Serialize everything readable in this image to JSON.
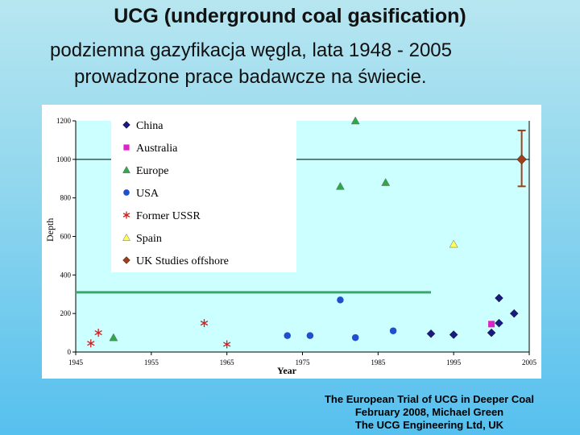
{
  "slide": {
    "title": "UCG (underground coal gasification)",
    "subtitle_line1": "podziemna gazyfikacja węgla, lata 1948 - 2005",
    "subtitle_line2": "prowadzone prace badawcze na świecie.",
    "footer_line1": "The European Trial of UCG in Deeper Coal",
    "footer_line2": "February 2008, Michael Green",
    "footer_line3": "The UCG Engineering Ltd, UK"
  },
  "colors": {
    "plot_bg": "#ccffff",
    "green_line": "#3aa86b",
    "china": "#1a1a80",
    "australia": "#e020c8",
    "europe": "#2fa84a",
    "usa": "#1f4fd0",
    "former_ussr": "#cc2020",
    "spain": "#ffff55",
    "uk": "#a0401a"
  },
  "chart_data": {
    "type": "scatter",
    "title": "",
    "xlabel": "Year",
    "ylabel": "Depth",
    "xlim": [
      1945,
      2005
    ],
    "ylim": [
      0,
      1200
    ],
    "x_ticks": [
      "1945",
      "1955",
      "1965",
      "1975",
      "1985",
      "1995",
      "2005"
    ],
    "y_ticks": [
      "0",
      "200",
      "400",
      "600",
      "800",
      "1000",
      "1200"
    ],
    "reference_lines": [
      {
        "y": 1000,
        "color": "black"
      },
      {
        "y": 310,
        "color": "green"
      }
    ],
    "legend_position": "top-left",
    "series": [
      {
        "name": "China",
        "marker": "diamond",
        "color": "#1a1a80",
        "points": [
          [
            1992,
            95
          ],
          [
            1995,
            90
          ],
          [
            2000,
            100
          ],
          [
            2001,
            150
          ],
          [
            2001,
            280
          ],
          [
            2003,
            200
          ]
        ]
      },
      {
        "name": "Australia",
        "marker": "square",
        "color": "#e020c8",
        "points": [
          [
            2000,
            145
          ]
        ]
      },
      {
        "name": "Europe",
        "marker": "triangle",
        "color": "#2fa84a",
        "points": [
          [
            1950,
            75
          ],
          [
            1980,
            860
          ],
          [
            1982,
            1200
          ],
          [
            1986,
            880
          ]
        ]
      },
      {
        "name": "USA",
        "marker": "circle",
        "color": "#1f4fd0",
        "points": [
          [
            1973,
            85
          ],
          [
            1976,
            85
          ],
          [
            1980,
            270
          ],
          [
            1982,
            75
          ],
          [
            1987,
            110
          ]
        ]
      },
      {
        "name": "Former USSR",
        "marker": "asterisk",
        "color": "#cc2020",
        "points": [
          [
            1947,
            45
          ],
          [
            1948,
            100
          ],
          [
            1962,
            150
          ],
          [
            1965,
            40
          ]
        ]
      },
      {
        "name": "Spain",
        "marker": "triangle",
        "color": "#ffff55",
        "points": [
          [
            1995,
            560
          ]
        ]
      },
      {
        "name": "UK Studies offshore",
        "marker": "diamond",
        "color": "#a0401a",
        "points": [
          [
            2004,
            1000
          ]
        ],
        "error_range": [
          860,
          1150
        ]
      }
    ]
  }
}
